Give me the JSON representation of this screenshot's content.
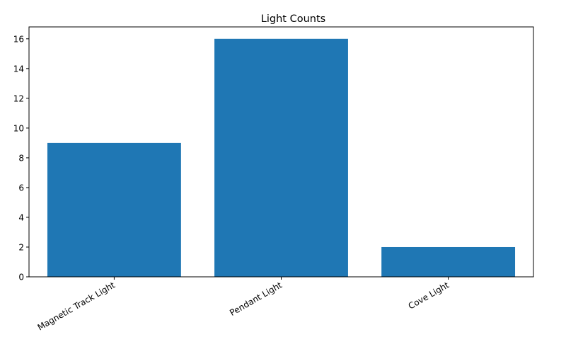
{
  "chart_data": {
    "type": "bar",
    "title": "Light Counts",
    "xlabel": "",
    "ylabel": "",
    "categories": [
      "Magnetic Track Light",
      "Pendant Light",
      "Cove Light"
    ],
    "values": [
      9,
      16,
      2
    ],
    "ylim": [
      0,
      16.8
    ],
    "yticks": [
      0,
      2,
      4,
      6,
      8,
      10,
      12,
      14,
      16
    ],
    "grid": false,
    "legend": "none",
    "bar_color": "#1f77b4"
  }
}
